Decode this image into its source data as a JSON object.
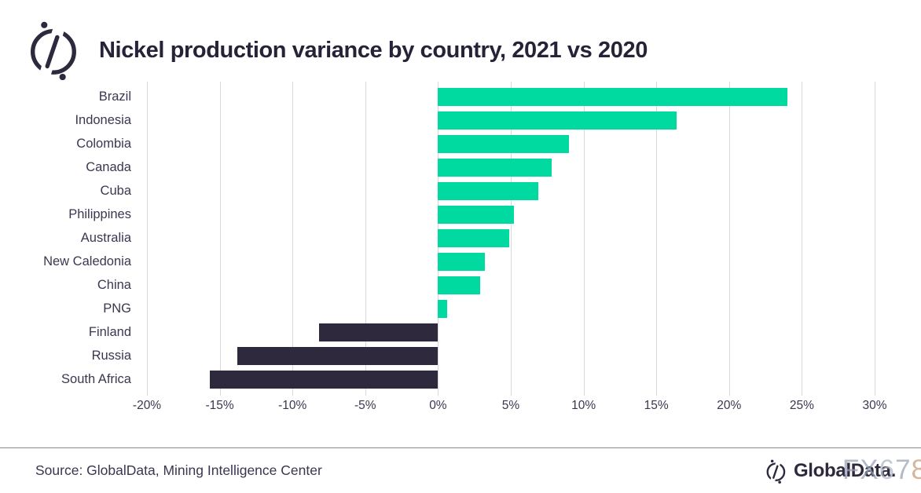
{
  "header": {
    "title": "Nickel production variance by country, 2021 vs 2020"
  },
  "chart_data": {
    "type": "bar",
    "orientation": "horizontal",
    "title": "Nickel production variance by country, 2021 vs 2020",
    "categories": [
      "Brazil",
      "Indonesia",
      "Colombia",
      "Canada",
      "Cuba",
      "Philippines",
      "Australia",
      "New Caledonia",
      "China",
      "PNG",
      "Finland",
      "Russia",
      "South Africa"
    ],
    "values": [
      24.0,
      16.4,
      9.0,
      7.8,
      6.9,
      5.2,
      4.9,
      3.2,
      2.9,
      0.6,
      -8.2,
      -13.8,
      -15.7
    ],
    "unit": "%",
    "xlabel": "",
    "ylabel": "",
    "xlim": [
      -20,
      30
    ],
    "tick_step": 5,
    "x_ticks": [
      "-20%",
      "-15%",
      "-10%",
      "-5%",
      "0%",
      "5%",
      "10%",
      "15%",
      "20%",
      "25%",
      "30%"
    ],
    "grid": true,
    "legend": false,
    "positive_color": "#00d9a0",
    "negative_color": "#2e293d",
    "gridline_color": "#d8d8d8"
  },
  "footer": {
    "source": "Source: GlobalData, Mining Intelligence Center",
    "brand": "GlobalData.",
    "watermark": "FX678",
    "watermark_char_colors": [
      "#98a1b4",
      "#98a1b4",
      "#aeb7c6",
      "#98a1b4",
      "#c59a78"
    ]
  },
  "colors": {
    "title_text": "#262238",
    "axis_text": "#3a3750",
    "brand_dark": "#2e293d"
  }
}
